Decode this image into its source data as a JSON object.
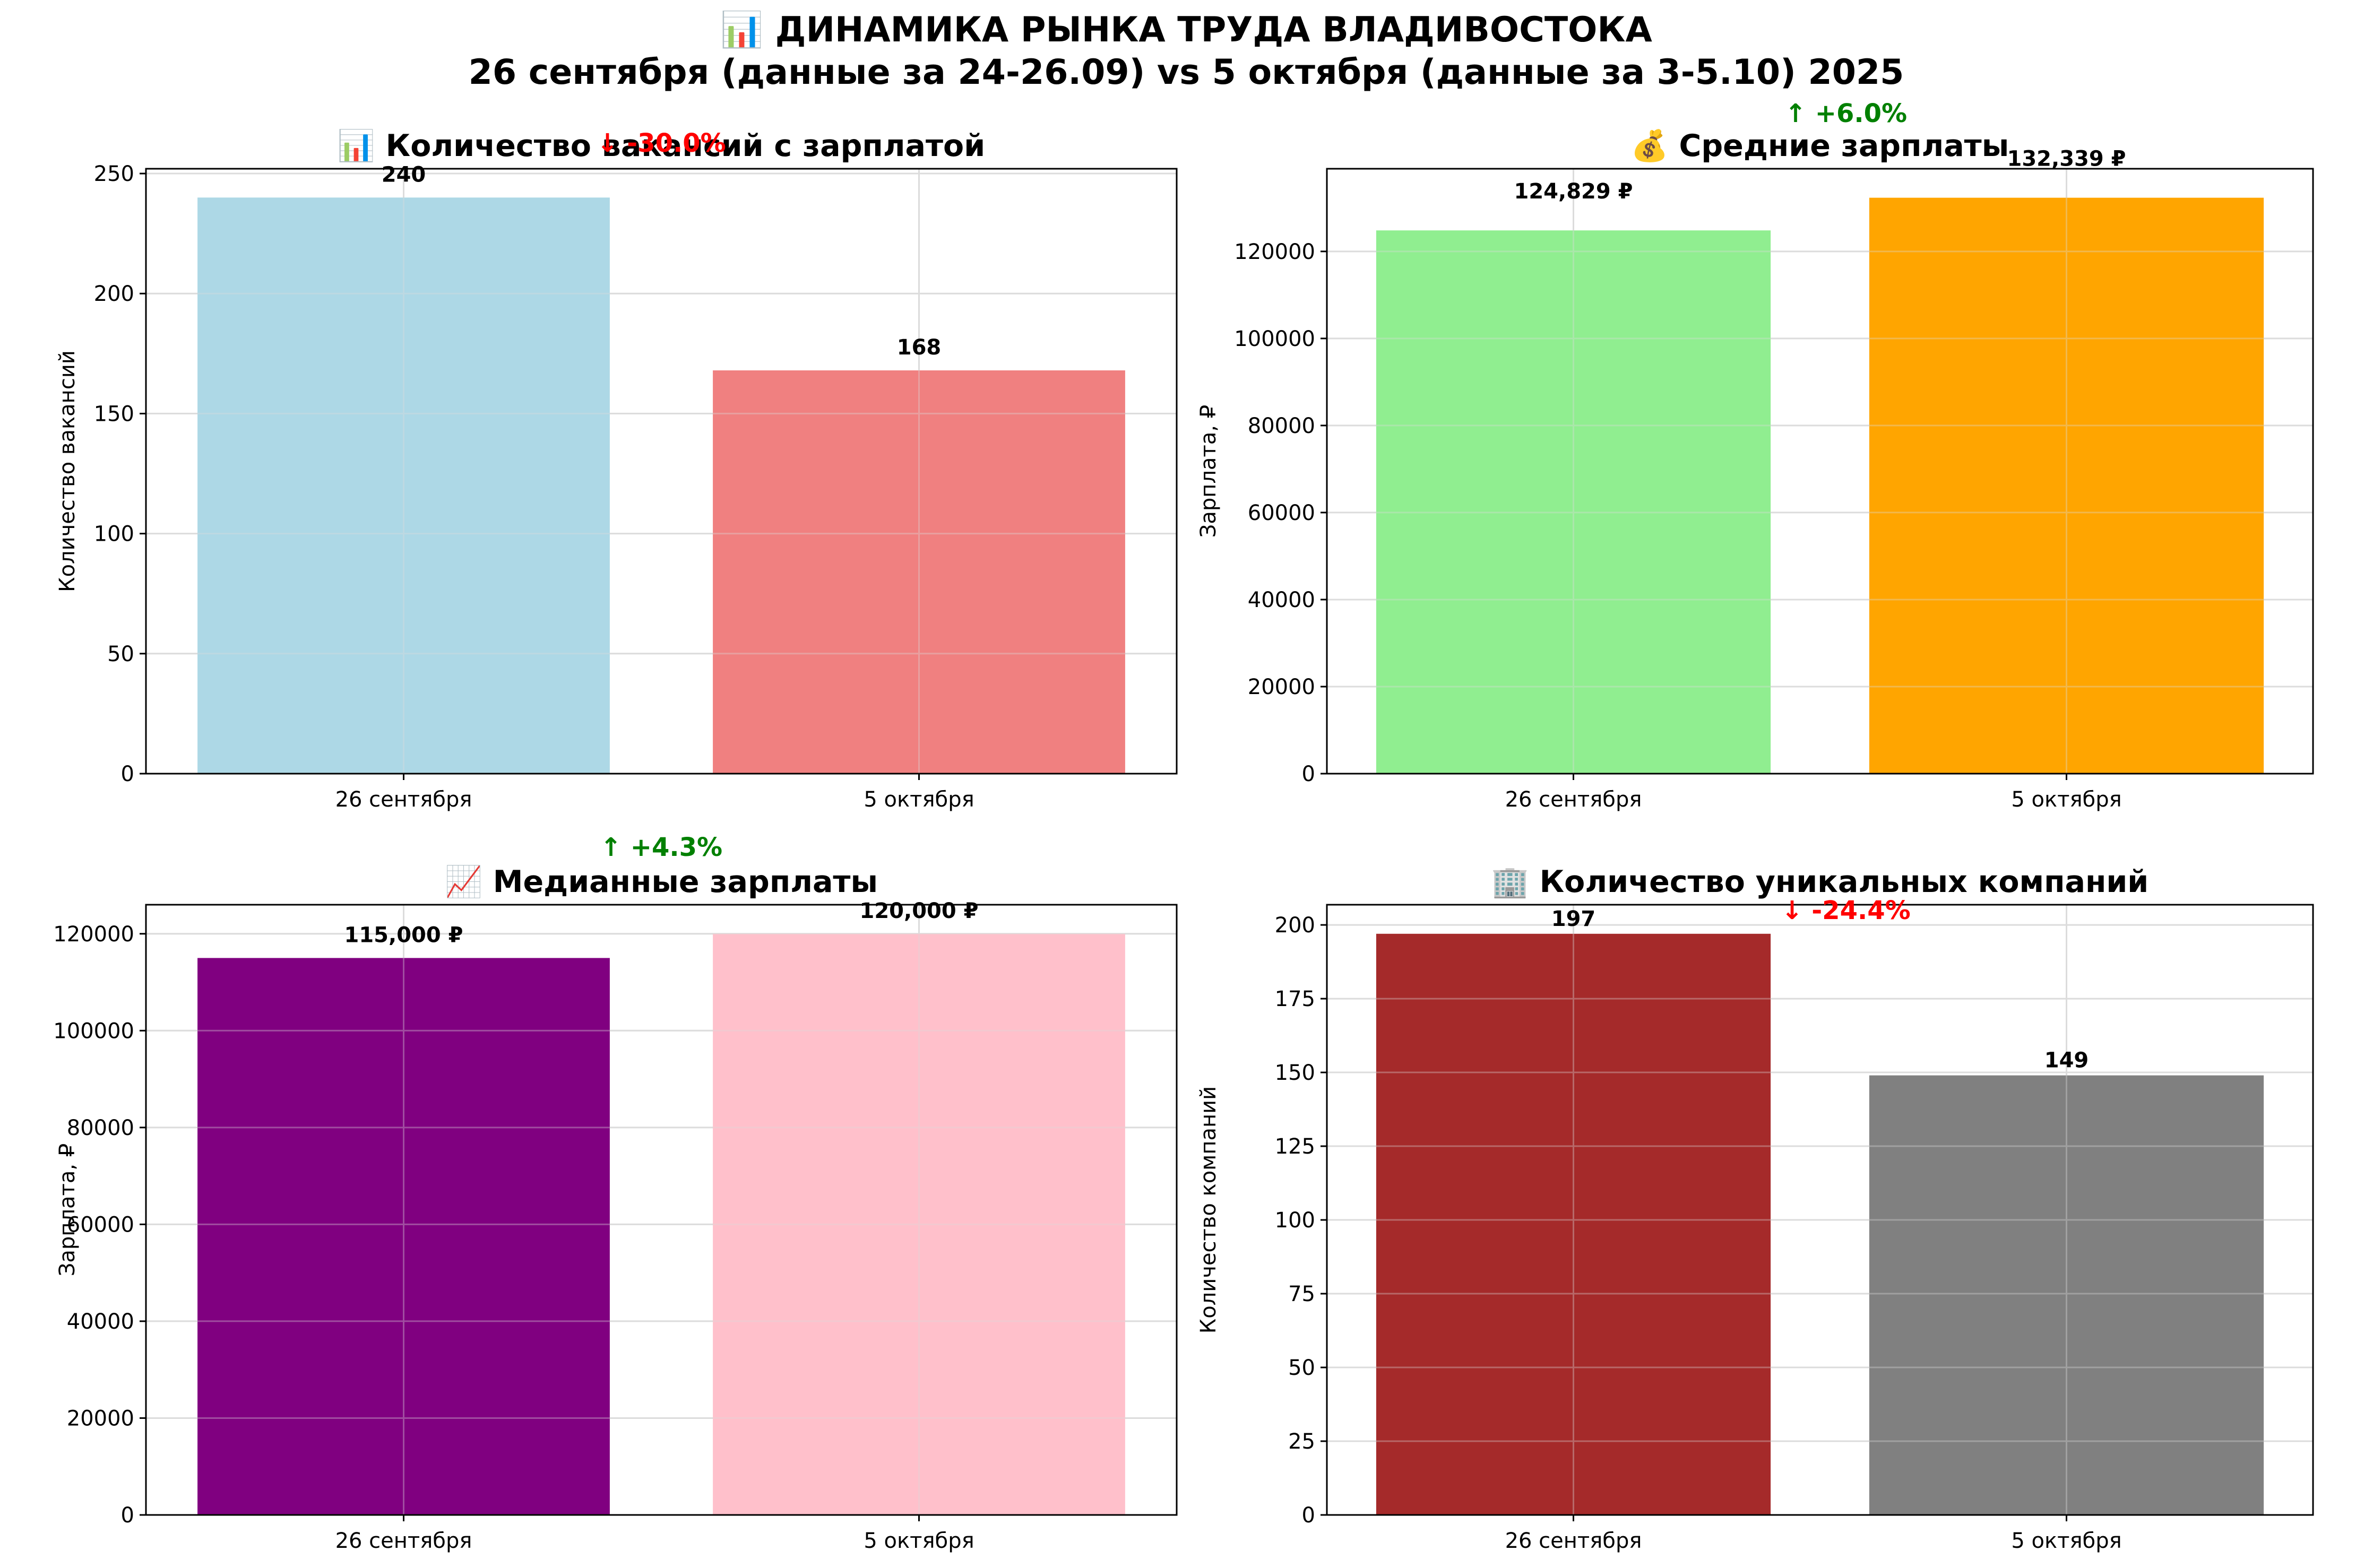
{
  "figure": {
    "title_line1": "📊 ДИНАМИКА РЫНКА ТРУДА ВЛАДИВОСТОКА",
    "title_line2": "26 сентября (данные за 24-26.09) vs 5 октября (данные за 3-5.10) 2025"
  },
  "chart_data": [
    {
      "type": "bar",
      "title": "📊 Количество вакансий с зарплатой",
      "ylabel": "Количество вакансий",
      "xlabel": "",
      "categories": [
        "26 сентября",
        "5 октября"
      ],
      "values": [
        240,
        168
      ],
      "value_labels": [
        "240",
        "168"
      ],
      "colors": [
        "#add8e6",
        "#f08080"
      ],
      "ylim": [
        0,
        252
      ],
      "yticks": [
        0,
        50,
        100,
        150,
        200,
        250
      ],
      "ytick_labels": [
        "0",
        "50",
        "100",
        "150",
        "200",
        "250"
      ],
      "change_label": "↓ -30.0%",
      "change_color": "#ff0000",
      "grid": true
    },
    {
      "type": "bar",
      "title": "💰 Средние зарплаты",
      "ylabel": "Зарплата, ₽",
      "xlabel": "",
      "categories": [
        "26 сентября",
        "5 октября"
      ],
      "values": [
        124829,
        132339
      ],
      "value_labels": [
        "124,829 ₽",
        "132,339 ₽"
      ],
      "colors": [
        "#90ee90",
        "#ffa500"
      ],
      "ylim": [
        0,
        139000
      ],
      "yticks": [
        0,
        20000,
        40000,
        60000,
        80000,
        100000,
        120000
      ],
      "ytick_labels": [
        "0",
        "20000",
        "40000",
        "60000",
        "80000",
        "100000",
        "120000"
      ],
      "change_label": "↑ +6.0%",
      "change_color": "#008000",
      "grid": true
    },
    {
      "type": "bar",
      "title": "📈 Медианные зарплаты",
      "ylabel": "Зарплата, ₽",
      "xlabel": "",
      "categories": [
        "26 сентября",
        "5 октября"
      ],
      "values": [
        115000,
        120000
      ],
      "value_labels": [
        "115,000 ₽",
        "120,000 ₽"
      ],
      "colors": [
        "#800080",
        "#ffc0cb"
      ],
      "ylim": [
        0,
        126000
      ],
      "yticks": [
        0,
        20000,
        40000,
        60000,
        80000,
        100000,
        120000
      ],
      "ytick_labels": [
        "0",
        "20000",
        "40000",
        "60000",
        "80000",
        "100000",
        "120000"
      ],
      "change_label": "↑ +4.3%",
      "change_color": "#008000",
      "grid": true
    },
    {
      "type": "bar",
      "title": "🏢 Количество уникальных компаний",
      "ylabel": "Количество компаний",
      "xlabel": "",
      "categories": [
        "26 сентября",
        "5 октября"
      ],
      "values": [
        197,
        149
      ],
      "value_labels": [
        "197",
        "149"
      ],
      "colors": [
        "#a52a2a",
        "#808080"
      ],
      "ylim": [
        0,
        206.85
      ],
      "yticks": [
        0,
        25,
        50,
        75,
        100,
        125,
        150,
        175,
        200
      ],
      "ytick_labels": [
        "0",
        "25",
        "50",
        "75",
        "100",
        "125",
        "150",
        "175",
        "200"
      ],
      "change_label": "↓ -24.4%",
      "change_color": "#ff0000",
      "grid": true
    }
  ]
}
